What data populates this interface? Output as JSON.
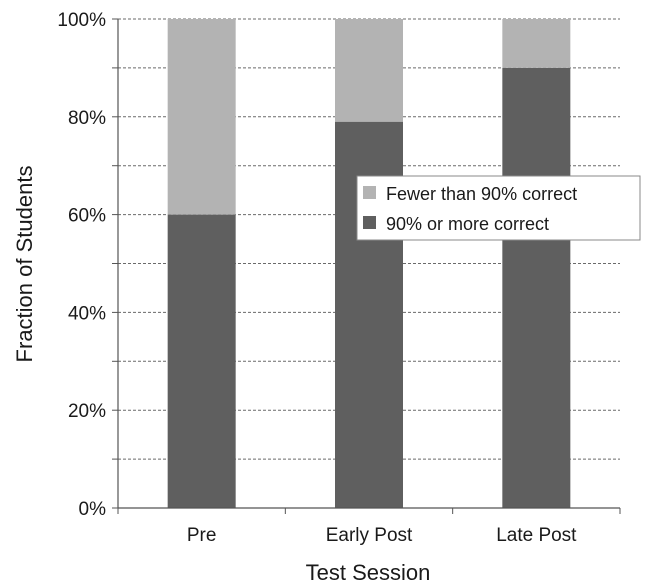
{
  "chart_data": {
    "type": "bar",
    "stacked": true,
    "categories": [
      "Pre",
      "Early Post",
      "Late Post"
    ],
    "series": [
      {
        "name": "90% or more correct",
        "values": [
          60,
          79,
          90
        ],
        "color": "#5f5f5f"
      },
      {
        "name": "Fewer than 90% correct",
        "values": [
          40,
          21,
          10
        ],
        "color": "#b3b3b3"
      }
    ],
    "ylim": [
      0,
      100
    ],
    "y_ticks": [
      "0%",
      "20%",
      "40%",
      "60%",
      "80%",
      "100%"
    ],
    "xlabel": "Test Session",
    "ylabel": "Fraction of Students",
    "grid": true,
    "grid_style": "dashed",
    "legend_position": "right"
  }
}
